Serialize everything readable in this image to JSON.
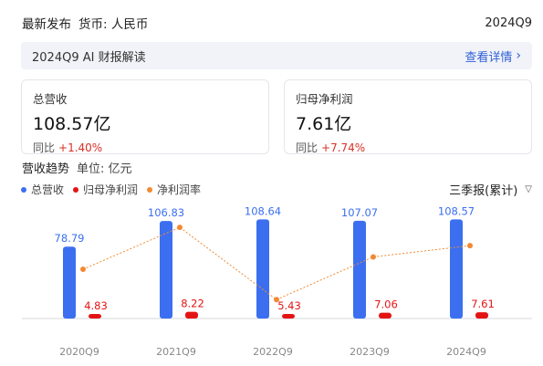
{
  "header": {
    "title": "最新发布",
    "currency": "货币: 人民币",
    "period": "2024Q9"
  },
  "ai_bar": {
    "title": "2024Q9 AI 财报解读",
    "link": "查看详情"
  },
  "cards": [
    {
      "label": "总营收",
      "value": "108.57亿",
      "yoy_label": "同比",
      "yoy": "+1.40%"
    },
    {
      "label": "归母净利润",
      "value": "7.61亿",
      "yoy_label": "同比",
      "yoy": "+7.74%"
    }
  ],
  "trend": {
    "title": "营收趋势",
    "unit": "单位: 亿元"
  },
  "selector": {
    "label": "三季报(累计)"
  },
  "colors": {
    "revenue": "#3b6ff0",
    "profit": "#e41414",
    "margin": "#f28a33",
    "up": "#d93026",
    "link": "#2f5fd6"
  },
  "chart_data": {
    "type": "bar",
    "categories": [
      "2020Q9",
      "2021Q9",
      "2022Q9",
      "2023Q9",
      "2024Q9"
    ],
    "series": [
      {
        "name": "总营收",
        "type": "bar",
        "values": [
          78.79,
          106.83,
          108.64,
          107.07,
          108.57
        ]
      },
      {
        "name": "归母净利润",
        "type": "bar",
        "values": [
          4.83,
          8.22,
          5.43,
          7.06,
          7.61
        ]
      },
      {
        "name": "净利润率",
        "type": "line",
        "values": [
          6.13,
          7.69,
          5.0,
          6.59,
          7.01
        ]
      }
    ],
    "legend": [
      "总营收",
      "归母净利润",
      "净利润率"
    ],
    "legend_position": "top-left"
  }
}
